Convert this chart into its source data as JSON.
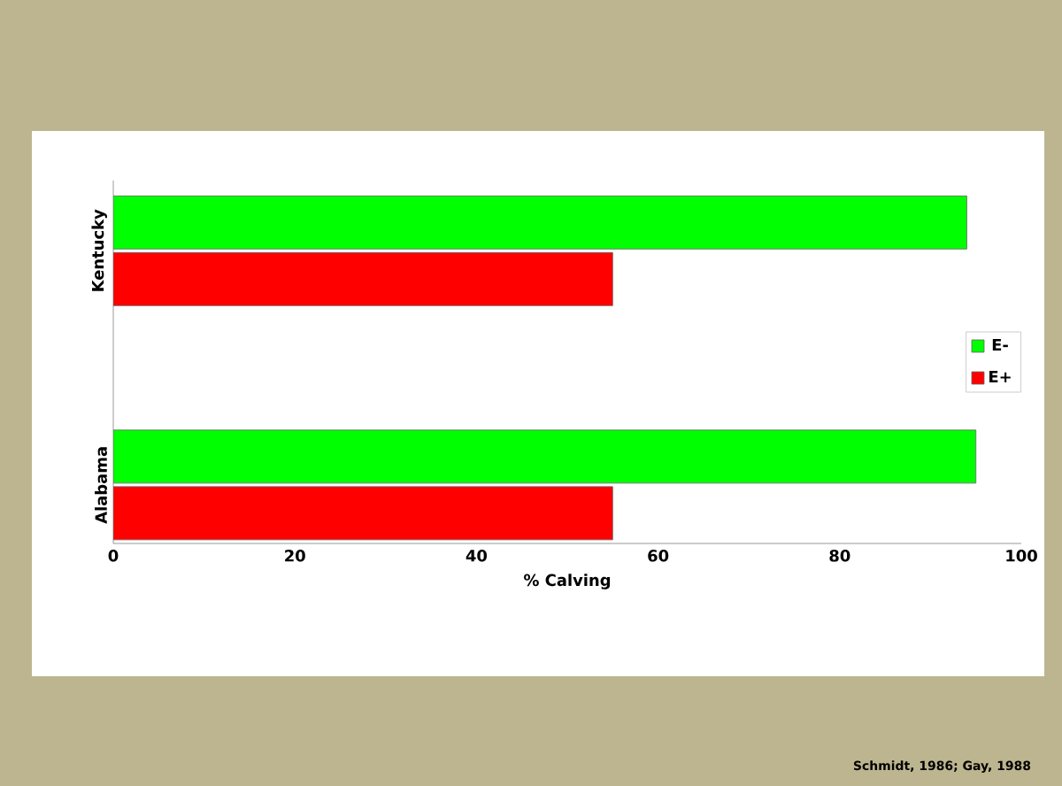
{
  "chart_data": {
    "type": "bar",
    "orientation": "horizontal",
    "categories": [
      "Kentucky",
      "Alabama"
    ],
    "series": [
      {
        "name": "E-",
        "color": "#00ff00",
        "values": [
          94,
          95
        ]
      },
      {
        "name": "E+",
        "color": "#ff0000",
        "values": [
          55,
          55
        ]
      }
    ],
    "xlabel": "% Calving",
    "xlim": [
      0,
      100
    ],
    "xticks": [
      0,
      20,
      40,
      60,
      80,
      100
    ],
    "legend": "right",
    "grid": false,
    "annotations": [
      "Schmidt, 1986; Gay, 1988"
    ]
  }
}
